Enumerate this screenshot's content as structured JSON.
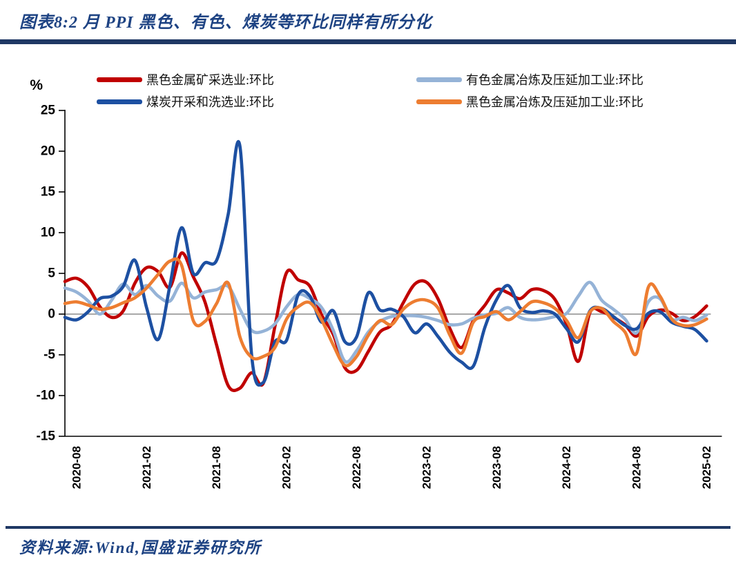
{
  "header": {
    "title": "图表8:2 月 PPI 黑色、有色、煤炭等环比同样有所分化"
  },
  "footer": {
    "source": "资料来源:Wind,国盛证券研究所"
  },
  "colors": {
    "title_navy": "#1e4383",
    "divider_navy": "#1f3864",
    "axis_black": "#000000",
    "zero_line_gray": "#8c8c8c"
  },
  "chart_data": {
    "type": "line",
    "title": "2月PPI黑色、有色、煤炭等环比分化",
    "unit_label": "%",
    "ylim": [
      -15,
      25
    ],
    "y_ticks": [
      25,
      20,
      15,
      10,
      5,
      0,
      -5,
      -10,
      -15
    ],
    "x_tick_labels": [
      "2020-08",
      "2021-02",
      "2021-08",
      "2022-02",
      "2022-08",
      "2023-02",
      "2023-08",
      "2024-02",
      "2024-08",
      "2025-02"
    ],
    "x_tick_indices": [
      1,
      7,
      13,
      19,
      25,
      31,
      37,
      43,
      49,
      55
    ],
    "x": [
      "2020-07",
      "2020-08",
      "2020-09",
      "2020-10",
      "2020-11",
      "2020-12",
      "2021-01",
      "2021-02",
      "2021-03",
      "2021-04",
      "2021-05",
      "2021-06",
      "2021-07",
      "2021-08",
      "2021-09",
      "2021-10",
      "2021-11",
      "2021-12",
      "2022-01",
      "2022-02",
      "2022-03",
      "2022-04",
      "2022-05",
      "2022-06",
      "2022-07",
      "2022-08",
      "2022-09",
      "2022-10",
      "2022-11",
      "2022-12",
      "2023-01",
      "2023-02",
      "2023-03",
      "2023-04",
      "2023-05",
      "2023-06",
      "2023-07",
      "2023-08",
      "2023-09",
      "2023-10",
      "2023-11",
      "2023-12",
      "2024-01",
      "2024-02",
      "2024-03",
      "2024-04",
      "2024-05",
      "2024-06",
      "2024-07",
      "2024-08",
      "2024-09",
      "2024-10",
      "2024-11",
      "2024-12",
      "2025-01",
      "2025-02"
    ],
    "series": [
      {
        "name": "黑色金属矿采选业:环比",
        "color": "#C00000",
        "values": [
          4.0,
          4.4,
          3.3,
          0.9,
          -0.4,
          0.4,
          3.8,
          5.7,
          5.2,
          3.3,
          7.5,
          4.6,
          1.5,
          -3.8,
          -8.8,
          -9.1,
          -7.2,
          -8.5,
          -1.5,
          5.1,
          4.2,
          3.4,
          -0.1,
          -2.5,
          -6.6,
          -6.9,
          -4.6,
          -2.2,
          -1.3,
          1.4,
          3.7,
          3.9,
          1.8,
          -1.8,
          -4.1,
          -0.8,
          1.1,
          3.0,
          2.6,
          1.9,
          3.0,
          2.9,
          1.8,
          -1.3,
          -5.8,
          0.2,
          0.3,
          -0.4,
          -1.3,
          -2.7,
          -0.3,
          0.5,
          0.1,
          -0.8,
          -0.3,
          1.0
        ]
      },
      {
        "name": "煤炭开采和洗选业:环比",
        "color": "#1D50A2",
        "values": [
          -0.4,
          -0.7,
          0.3,
          1.9,
          2.2,
          3.4,
          6.6,
          0.8,
          -3.1,
          3.5,
          10.6,
          5.0,
          6.3,
          6.6,
          12.3,
          20.6,
          -5.0,
          -8.4,
          -3.4,
          -3.2,
          2.4,
          2.2,
          -1.0,
          0.4,
          -3.4,
          -2.8,
          2.6,
          0.5,
          0.6,
          -0.3,
          -2.3,
          -1.2,
          -2.8,
          -4.7,
          -5.9,
          -6.4,
          -1.6,
          1.8,
          3.5,
          0.8,
          0.2,
          0.4,
          0.0,
          -1.8,
          -3.4,
          0.4,
          0.7,
          -0.3,
          -1.4,
          -1.8,
          0.1,
          0.3,
          -1.0,
          -1.5,
          -1.9,
          -3.3
        ]
      },
      {
        "name": "有色金属冶炼及压延加工业:环比",
        "color": "#95B3D7",
        "values": [
          3.2,
          2.7,
          1.6,
          0.0,
          1.7,
          3.7,
          2.4,
          3.5,
          2.2,
          1.6,
          3.8,
          2.0,
          2.7,
          3.0,
          3.4,
          0.6,
          -2.0,
          -2.1,
          -1.2,
          0.9,
          2.4,
          1.9,
          0.8,
          -2.0,
          -5.8,
          -4.5,
          -2.2,
          -0.9,
          -0.3,
          -0.2,
          -0.2,
          -0.4,
          -0.8,
          -1.3,
          -1.2,
          -0.5,
          -0.1,
          0.1,
          0.8,
          -0.4,
          -0.7,
          -0.6,
          -0.3,
          0.1,
          2.2,
          3.9,
          1.7,
          0.6,
          -0.6,
          -2.3,
          1.5,
          1.9,
          -0.6,
          -0.4,
          -0.8,
          -0.1
        ]
      },
      {
        "name": "黑色金属冶炼及压延加工业:环比",
        "color": "#ED7D31",
        "values": [
          1.3,
          1.5,
          1.1,
          0.6,
          0.8,
          1.4,
          2.0,
          3.2,
          4.9,
          6.5,
          6.0,
          -0.8,
          -0.9,
          1.3,
          3.8,
          -2.8,
          -5.3,
          -5.2,
          -4.1,
          -0.6,
          0.9,
          1.4,
          -0.7,
          -3.8,
          -6.3,
          -5.2,
          -2.6,
          -0.8,
          -1.3,
          0.6,
          1.6,
          1.7,
          0.7,
          -2.6,
          -4.8,
          -1.0,
          -0.3,
          0.3,
          -0.7,
          0.3,
          1.5,
          1.4,
          0.7,
          -0.8,
          -2.9,
          0.3,
          0.7,
          -0.9,
          -2.2,
          -4.8,
          3.3,
          2.2,
          -0.6,
          -1.4,
          -1.3,
          -0.6
        ]
      }
    ],
    "draw_order": [
      0,
      2,
      1,
      3
    ],
    "legend_position": "top",
    "grid": "zero-line-only"
  }
}
